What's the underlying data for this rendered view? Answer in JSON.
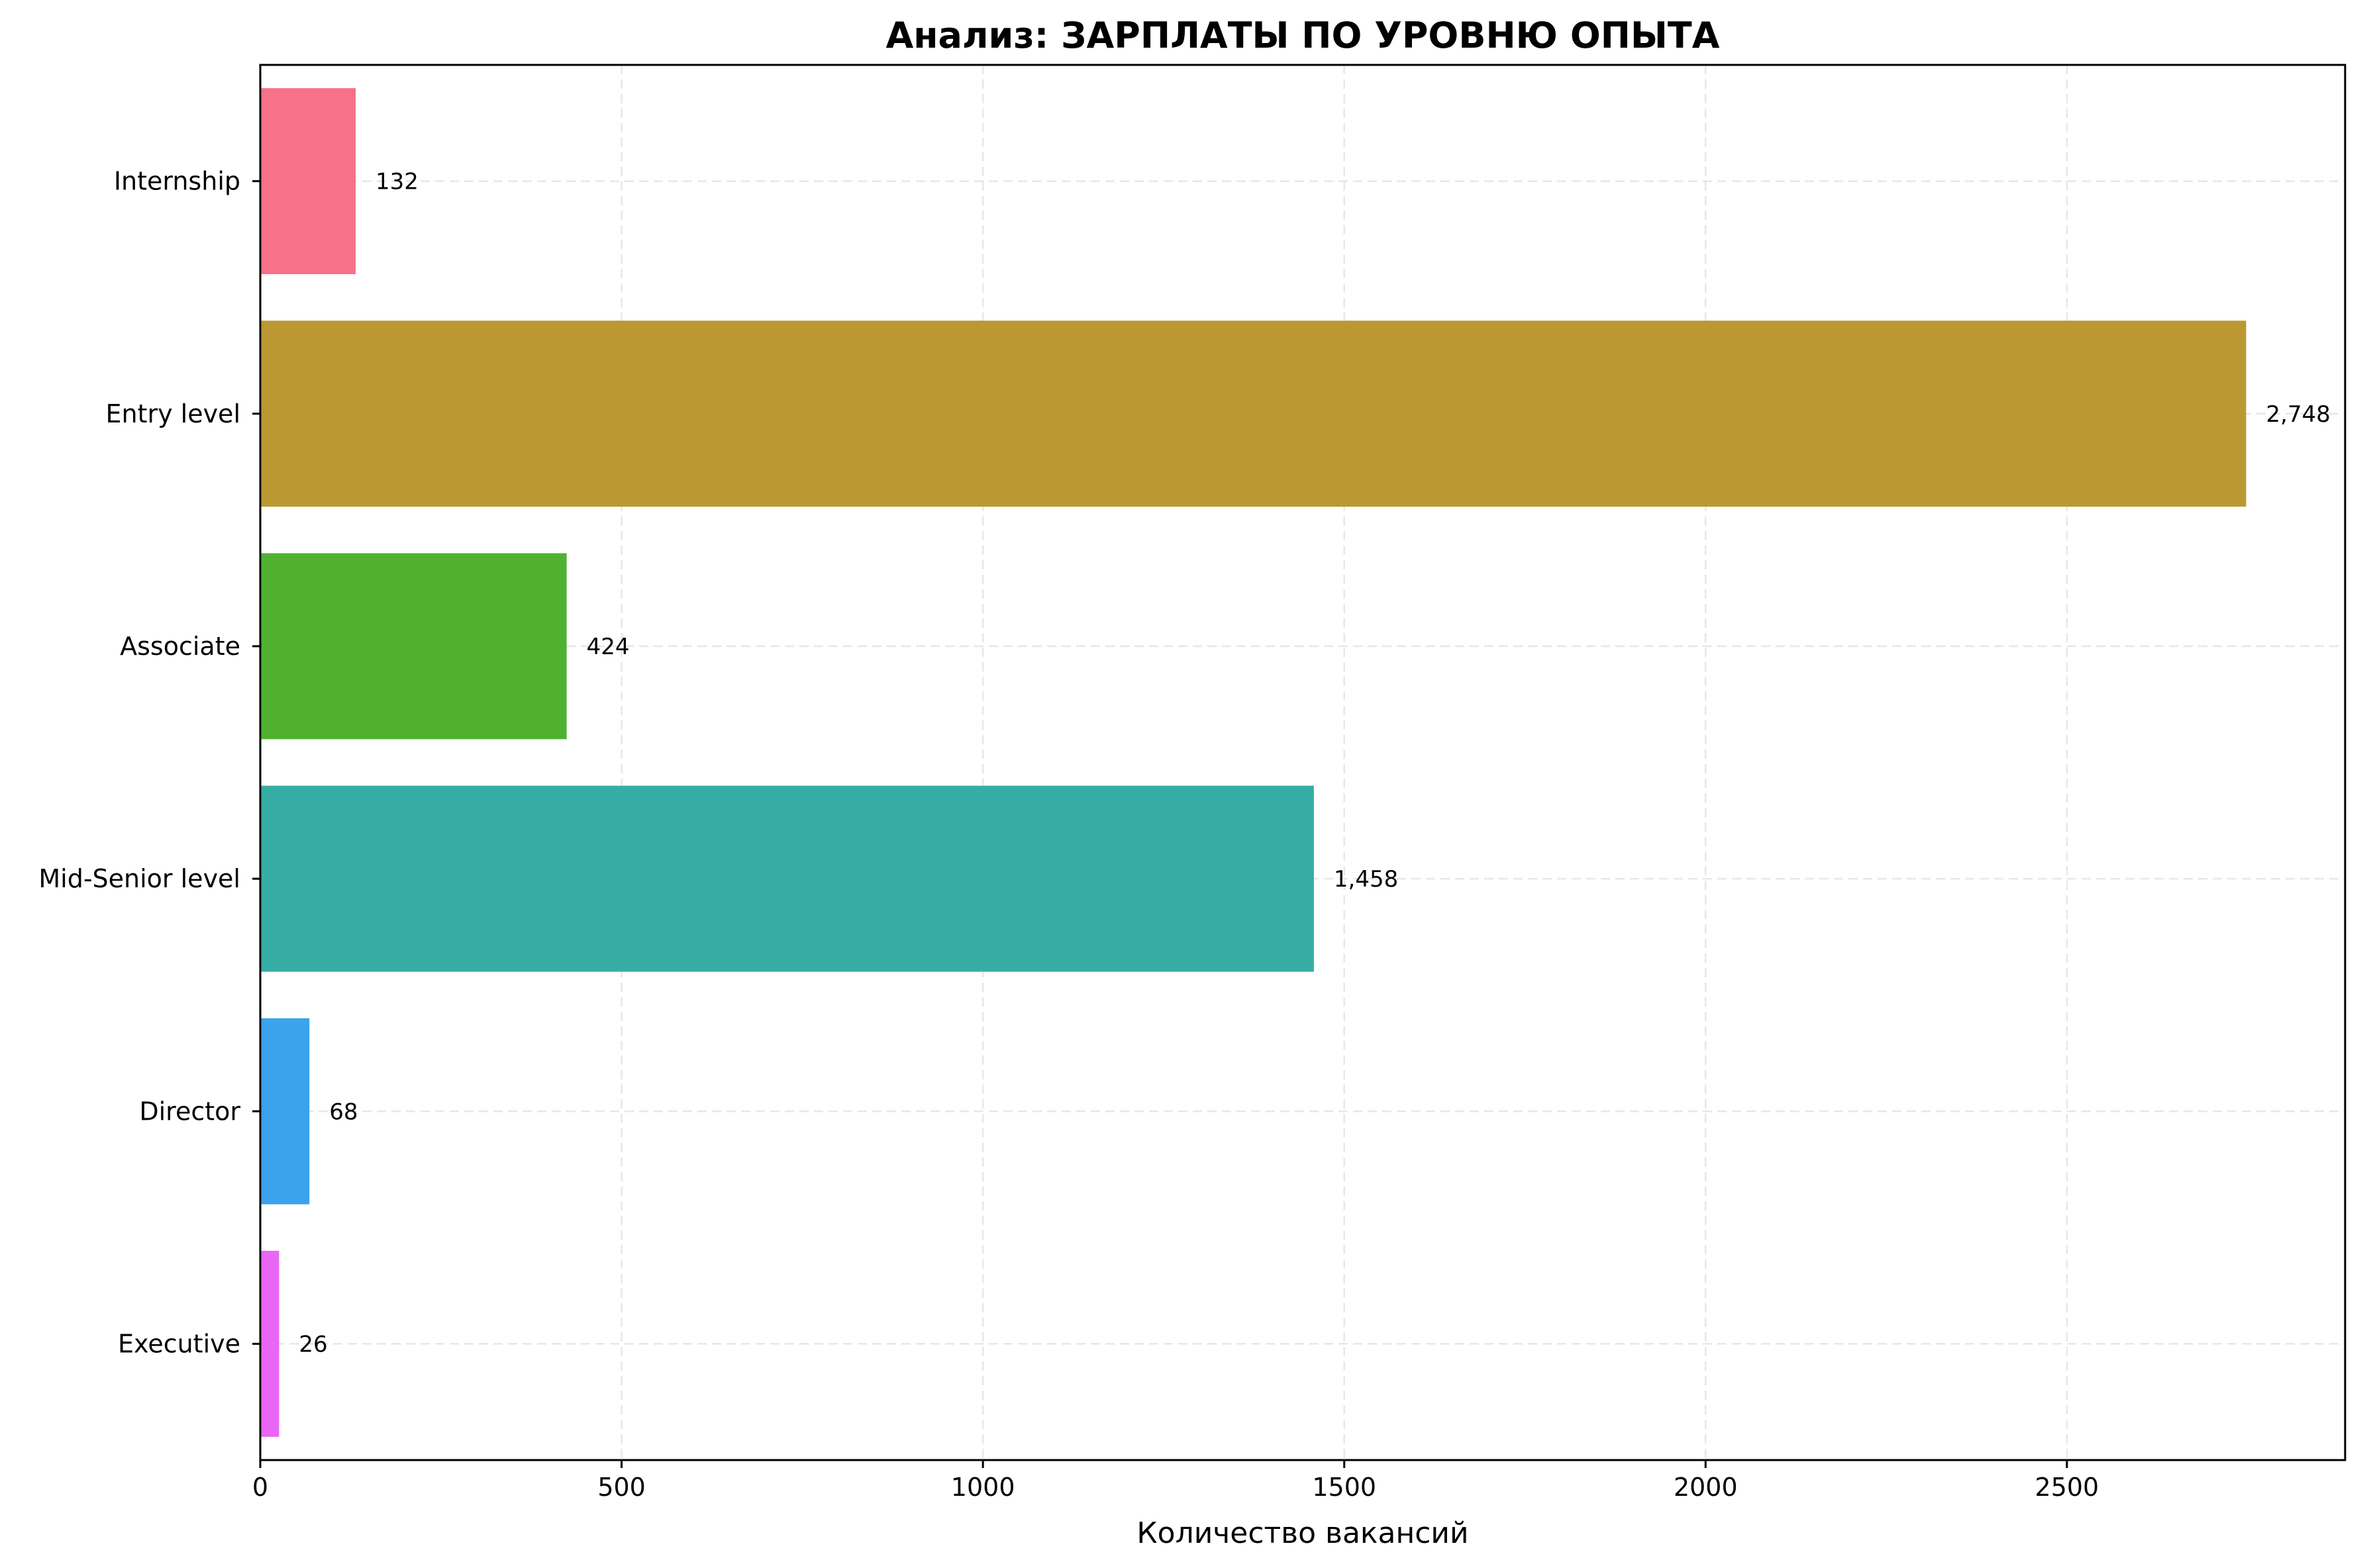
{
  "chart_data": {
    "type": "bar",
    "orientation": "horizontal",
    "title": "Анализ: ЗАРПЛАТЫ ПО УРОВНЮ ОПЫТА",
    "xlabel": "Количество вакансий",
    "ylabel": "",
    "categories": [
      "Internship",
      "Entry level",
      "Associate",
      "Mid-Senior level",
      "Director",
      "Executive"
    ],
    "values": [
      132,
      2748,
      424,
      1458,
      68,
      26
    ],
    "value_labels": [
      "132",
      "2,748",
      "424",
      "1,458",
      "68",
      "26"
    ],
    "colors": [
      "#f77189",
      "#bb9832",
      "#50b131",
      "#36ada4",
      "#3ba3ec",
      "#e866f4"
    ],
    "xlim": [
      0,
      2885
    ],
    "xticks": [
      0,
      500,
      1000,
      1500,
      2000,
      2500
    ],
    "xtick_labels": [
      "0",
      "500",
      "1000",
      "1500",
      "2000",
      "2500"
    ],
    "grid": true
  }
}
